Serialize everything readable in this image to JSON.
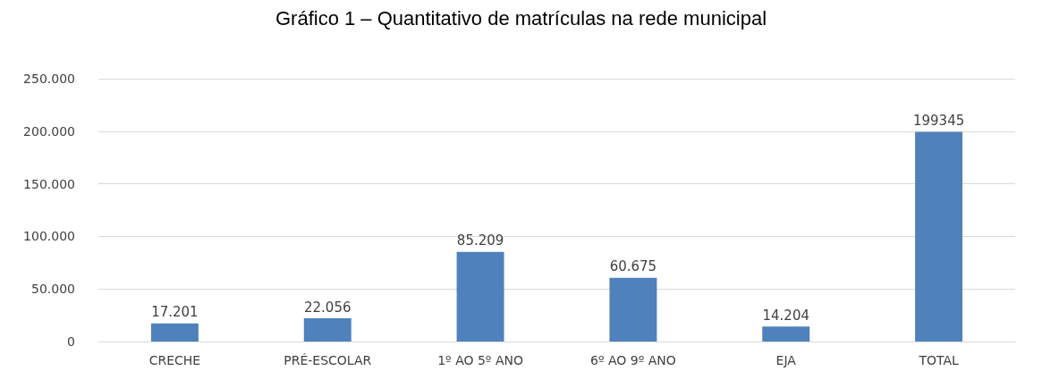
{
  "chart_data": {
    "type": "bar",
    "title": "Gráfico 1 – Quantitativo de matrículas na rede municipal",
    "categories": [
      "CRECHE",
      "PRÉ-ESCOLAR",
      "1º AO 5º ANO",
      "6º AO 9º ANO",
      "EJA",
      "TOTAL"
    ],
    "values": [
      17201,
      22056,
      85209,
      60675,
      14204,
      199345
    ],
    "value_labels": [
      "17.201",
      "22.056",
      "85.209",
      "60.675",
      "14.204",
      "199345"
    ],
    "color": "#4f81bd",
    "ylim": [
      0,
      250000
    ],
    "yticks": [
      0,
      {
        "value": 50000,
        "label": "50.000"
      },
      {
        "value": 100000,
        "label": "100.000"
      },
      {
        "value": 150000,
        "label": "150.000"
      },
      {
        "value": 200000,
        "label": "200.000"
      },
      {
        "value": 250000,
        "label": "250.000"
      }
    ],
    "grid": "y"
  }
}
